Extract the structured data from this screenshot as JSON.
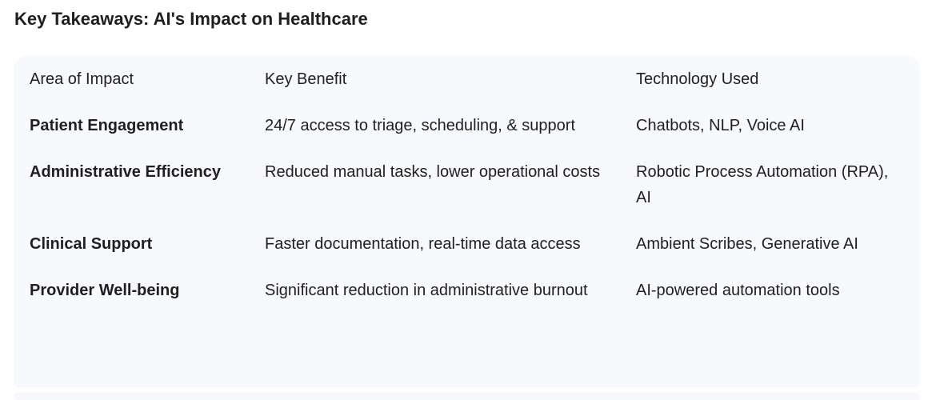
{
  "title": "Key Takeaways: AI's Impact on Healthcare",
  "table": {
    "headers": [
      "Area of Impact",
      "Key Benefit",
      "Technology Used"
    ],
    "rows": [
      {
        "area": "Patient Engagement",
        "benefit": "24/7 access to triage, scheduling, & support",
        "technology": "Chatbots, NLP, Voice AI"
      },
      {
        "area": "Administrative Efficiency",
        "benefit": "Reduced manual tasks, lower operational costs",
        "technology": "Robotic Process Automation (RPA), AI"
      },
      {
        "area": "Clinical Support",
        "benefit": "Faster documentation, real-time data access",
        "technology": "Ambient Scribes, Generative AI"
      },
      {
        "area": "Provider Well-being",
        "benefit": "Significant reduction in administrative burnout",
        "technology": "AI-powered automation tools"
      }
    ]
  }
}
